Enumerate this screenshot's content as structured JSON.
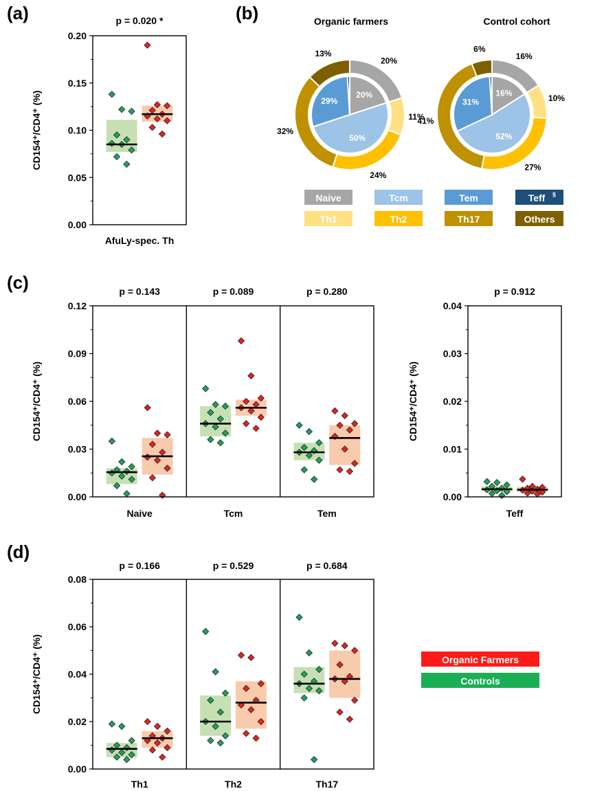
{
  "colors": {
    "controls_dot": "#1fa25a",
    "controls_box": "#c6e0b4",
    "farmers_dot": "#e8211e",
    "farmers_box": "#f8cbad",
    "naive": "#a6a6a6",
    "tcm": "#9dc3e6",
    "tem": "#5b9bd5",
    "teff": "#1f4e79",
    "th1": "#ffe083",
    "th2": "#ffc000",
    "th17": "#bf9000",
    "others": "#7f6000",
    "legend_farmers": "#ff1a1a",
    "legend_controls": "#1aaf54"
  },
  "panels": {
    "a": "(a)",
    "b": "(b)",
    "c": "(c)",
    "d": "(d)"
  },
  "legend": {
    "farmers": "Organic Farmers",
    "controls": "Controls"
  },
  "pie_legend": {
    "naive": "Naive",
    "tcm": "Tcm",
    "tem": "Tem",
    "teff": "Teff",
    "teff_sup": "§",
    "th1": "Th1",
    "th2": "Th2",
    "th17": "Th17",
    "others": "Others"
  },
  "chart_data": [
    {
      "id": "a",
      "type": "scatter",
      "ylabel": "CD154⁺/CD4⁺ (%)",
      "ylim": [
        0,
        0.2
      ],
      "yticks": [
        "0.00",
        "0.05",
        "0.10",
        "0.15",
        "0.20"
      ],
      "categories": [
        "AfuLy-spec. Th"
      ],
      "pvalues": [
        "p = 0.020 *"
      ],
      "groups": [
        {
          "controls": {
            "median": 0.085,
            "q1": 0.077,
            "q3": 0.111,
            "points": [
              0.138,
              0.122,
              0.12,
              0.095,
              0.09,
              0.086,
              0.085,
              0.079,
              0.072,
              0.064
            ]
          },
          "farmers": {
            "median": 0.117,
            "q1": 0.109,
            "q3": 0.126,
            "points": [
              0.19,
              0.127,
              0.126,
              0.121,
              0.117,
              0.115,
              0.112,
              0.11,
              0.103,
              0.096
            ]
          }
        }
      ]
    },
    {
      "id": "b",
      "type": "pie",
      "charts": [
        {
          "title": "Organic farmers",
          "inner": [
            {
              "key": "naive",
              "value": 20,
              "label": "20%"
            },
            {
              "key": "tcm",
              "value": 50,
              "label": "50%"
            },
            {
              "key": "tem",
              "value": 29,
              "label": "29%"
            },
            {
              "key": "teff",
              "value": 1,
              "label": ""
            }
          ],
          "outer": [
            {
              "key": "naive",
              "value": 20,
              "label": "20%"
            },
            {
              "key": "th1",
              "value": 11,
              "label": "11%"
            },
            {
              "key": "th2",
              "value": 24,
              "label": "24%"
            },
            {
              "key": "th17",
              "value": 32,
              "label": "32%"
            },
            {
              "key": "others",
              "value": 13,
              "label": "13%"
            }
          ]
        },
        {
          "title": "Control cohort",
          "inner": [
            {
              "key": "naive",
              "value": 16,
              "label": "16%"
            },
            {
              "key": "tcm",
              "value": 52,
              "label": "52%"
            },
            {
              "key": "tem",
              "value": 31,
              "label": "31%"
            },
            {
              "key": "teff",
              "value": 1,
              "label": ""
            }
          ],
          "outer": [
            {
              "key": "naive",
              "value": 16,
              "label": "16%"
            },
            {
              "key": "th1",
              "value": 10,
              "label": "10%"
            },
            {
              "key": "th2",
              "value": 27,
              "label": "27%"
            },
            {
              "key": "th17",
              "value": 41,
              "label": "41%"
            },
            {
              "key": "others",
              "value": 6,
              "label": "6%"
            }
          ]
        }
      ]
    },
    {
      "id": "c",
      "type": "scatter",
      "ylabel": "CD154⁺/CD4⁺ (%)",
      "ylim": [
        0,
        0.12
      ],
      "yticks": [
        "0.00",
        "0.03",
        "0.06",
        "0.09",
        "0.12"
      ],
      "categories": [
        "Naive",
        "Tcm",
        "Tem"
      ],
      "pvalues": [
        "p = 0.143",
        "p = 0.089",
        "p = 0.280"
      ],
      "groups": [
        {
          "controls": {
            "median": 0.0155,
            "q1": 0.008,
            "q3": 0.018,
            "points": [
              0.035,
              0.022,
              0.019,
              0.017,
              0.016,
              0.015,
              0.013,
              0.011,
              0.007,
              0.002
            ]
          },
          "farmers": {
            "median": 0.0255,
            "q1": 0.014,
            "q3": 0.037,
            "points": [
              0.056,
              0.04,
              0.039,
              0.033,
              0.028,
              0.025,
              0.023,
              0.018,
              0.012,
              0.001
            ]
          }
        },
        {
          "controls": {
            "median": 0.046,
            "q1": 0.038,
            "q3": 0.057,
            "points": [
              0.068,
              0.058,
              0.057,
              0.053,
              0.049,
              0.046,
              0.044,
              0.04,
              0.036,
              0.034
            ]
          },
          "farmers": {
            "median": 0.056,
            "q1": 0.051,
            "q3": 0.061,
            "points": [
              0.098,
              0.076,
              0.062,
              0.06,
              0.058,
              0.056,
              0.054,
              0.05,
              0.046,
              0.043
            ]
          }
        },
        {
          "controls": {
            "median": 0.028,
            "q1": 0.023,
            "q3": 0.034,
            "points": [
              0.045,
              0.041,
              0.034,
              0.031,
              0.029,
              0.028,
              0.026,
              0.023,
              0.017,
              0.011
            ]
          },
          "farmers": {
            "median": 0.037,
            "q1": 0.02,
            "q3": 0.045,
            "points": [
              0.054,
              0.051,
              0.046,
              0.045,
              0.042,
              0.038,
              0.03,
              0.021,
              0.017,
              0.016
            ]
          }
        }
      ]
    },
    {
      "id": "c-teff",
      "type": "scatter",
      "ylabel": "CD154⁺/CD4⁺ (%)",
      "ylim": [
        0,
        0.04
      ],
      "yticks": [
        "0.00",
        "0.01",
        "0.02",
        "0.03",
        "0.04"
      ],
      "categories": [
        "Teff"
      ],
      "pvalues": [
        "p = 0.912"
      ],
      "groups": [
        {
          "controls": {
            "median": 0.0016,
            "q1": 0.0011,
            "q3": 0.0022,
            "points": [
              0.0032,
              0.003,
              0.0025,
              0.0022,
              0.0018,
              0.0015,
              0.0013,
              0.0011,
              0.0007,
              0.0003
            ]
          },
          "farmers": {
            "median": 0.0015,
            "q1": 0.001,
            "q3": 0.0021,
            "points": [
              0.0037,
              0.0022,
              0.002,
              0.0018,
              0.0016,
              0.0014,
              0.0012,
              0.001,
              0.0008,
              0.0006
            ]
          }
        }
      ]
    },
    {
      "id": "d",
      "type": "scatter",
      "ylabel": "CD154⁺/CD4⁺ (%)",
      "ylim": [
        0,
        0.08
      ],
      "yticks": [
        "0.00",
        "0.02",
        "0.04",
        "0.06",
        "0.08"
      ],
      "categories": [
        "Th1",
        "Th2",
        "Th17"
      ],
      "pvalues": [
        "p = 0.166",
        "p = 0.529",
        "p = 0.684"
      ],
      "groups": [
        {
          "controls": {
            "median": 0.0085,
            "q1": 0.005,
            "q3": 0.011,
            "points": [
              0.019,
              0.018,
              0.012,
              0.01,
              0.009,
              0.008,
              0.007,
              0.006,
              0.005,
              0.004
            ]
          },
          "farmers": {
            "median": 0.013,
            "q1": 0.009,
            "q3": 0.016,
            "points": [
              0.02,
              0.018,
              0.016,
              0.014,
              0.013,
              0.012,
              0.011,
              0.009,
              0.008,
              0.005
            ]
          }
        },
        {
          "controls": {
            "median": 0.02,
            "q1": 0.014,
            "q3": 0.031,
            "points": [
              0.058,
              0.041,
              0.032,
              0.029,
              0.024,
              0.02,
              0.018,
              0.014,
              0.012,
              0.011
            ]
          },
          "farmers": {
            "median": 0.028,
            "q1": 0.017,
            "q3": 0.037,
            "points": [
              0.048,
              0.047,
              0.036,
              0.034,
              0.029,
              0.027,
              0.025,
              0.02,
              0.015,
              0.013
            ]
          }
        },
        {
          "controls": {
            "median": 0.036,
            "q1": 0.032,
            "q3": 0.043,
            "points": [
              0.064,
              0.049,
              0.042,
              0.04,
              0.037,
              0.036,
              0.034,
              0.033,
              0.03,
              0.004
            ]
          },
          "farmers": {
            "median": 0.038,
            "q1": 0.03,
            "q3": 0.05,
            "points": [
              0.053,
              0.052,
              0.05,
              0.044,
              0.039,
              0.038,
              0.037,
              0.029,
              0.024,
              0.021
            ]
          }
        }
      ]
    }
  ]
}
